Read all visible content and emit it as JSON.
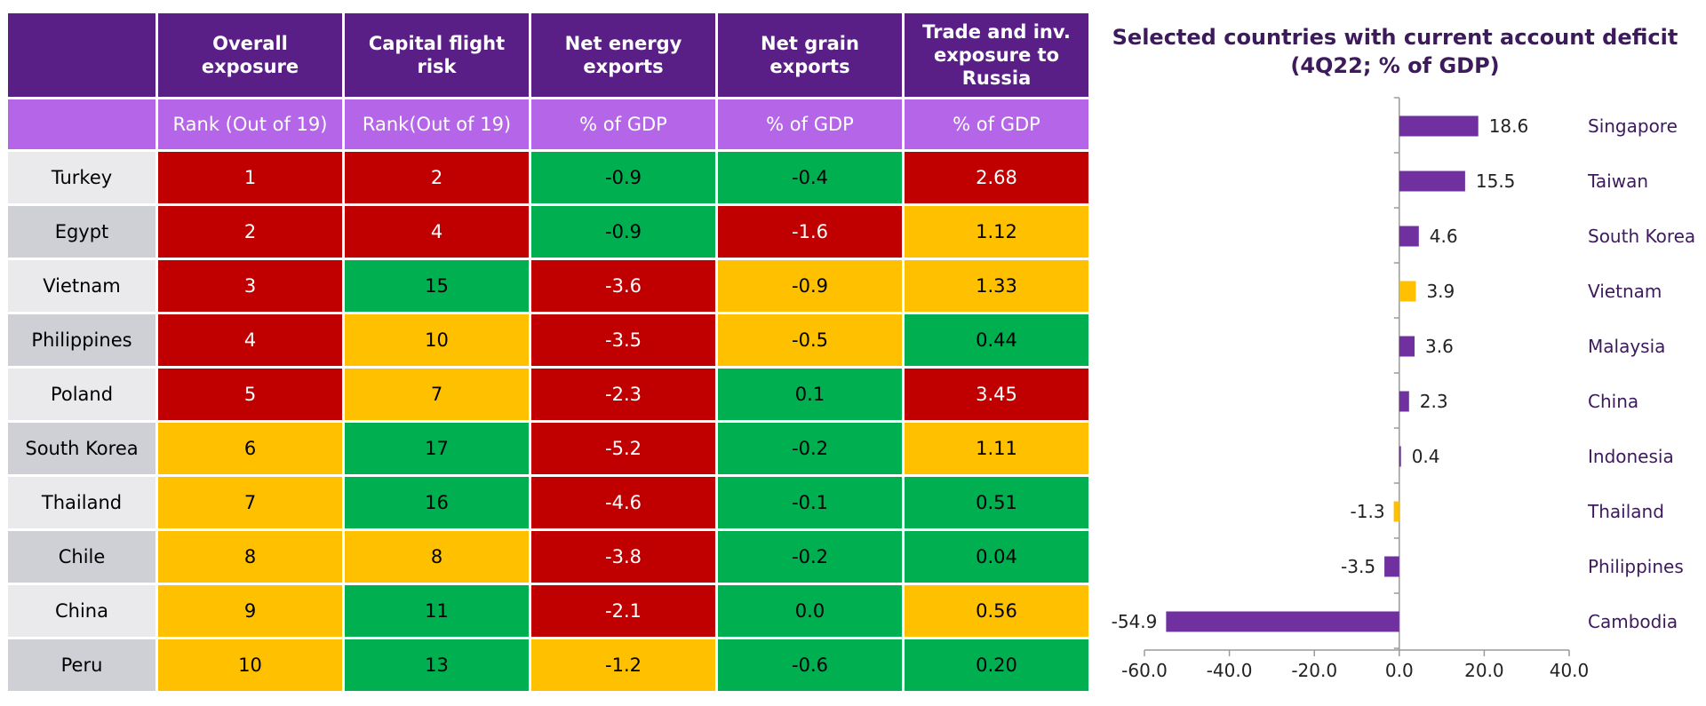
{
  "table": {
    "headers": [
      "Overall exposure",
      "Capital flight risk",
      "Net energy exports",
      "Net grain exports",
      "Trade and inv. exposure to Russia"
    ],
    "header_lines": [
      [
        "Overall",
        "exposure"
      ],
      [
        "Capital flight",
        "risk"
      ],
      [
        "Net energy",
        "exports"
      ],
      [
        "Net grain",
        "exports"
      ],
      [
        "Trade and inv.",
        "exposure to",
        "Russia"
      ]
    ],
    "subheaders": [
      "Rank (Out of 19)",
      "Rank(Out of 19)",
      "% of GDP",
      "% of GDP",
      "% of GDP"
    ],
    "rows": [
      {
        "country": "Turkey",
        "values": [
          "1",
          "2",
          "-0.9",
          "-0.4",
          "2.68"
        ],
        "colors": [
          "red",
          "red",
          "green",
          "green",
          "red"
        ]
      },
      {
        "country": "Egypt",
        "values": [
          "2",
          "4",
          "-0.9",
          "-1.6",
          "1.12"
        ],
        "colors": [
          "red",
          "red",
          "green",
          "red",
          "yellow"
        ]
      },
      {
        "country": "Vietnam",
        "values": [
          "3",
          "15",
          "-3.6",
          "-0.9",
          "1.33"
        ],
        "colors": [
          "red",
          "green",
          "red",
          "yellow",
          "yellow"
        ]
      },
      {
        "country": "Philippines",
        "values": [
          "4",
          "10",
          "-3.5",
          "-0.5",
          "0.44"
        ],
        "colors": [
          "red",
          "yellow",
          "red",
          "yellow",
          "green"
        ]
      },
      {
        "country": "Poland",
        "values": [
          "5",
          "7",
          "-2.3",
          "0.1",
          "3.45"
        ],
        "colors": [
          "red",
          "yellow",
          "red",
          "green",
          "red"
        ]
      },
      {
        "country": "South Korea",
        "values": [
          "6",
          "17",
          "-5.2",
          "-0.2",
          "1.11"
        ],
        "colors": [
          "yellow",
          "green",
          "red",
          "green",
          "yellow"
        ]
      },
      {
        "country": "Thailand",
        "values": [
          "7",
          "16",
          "-4.6",
          "-0.1",
          "0.51"
        ],
        "colors": [
          "yellow",
          "green",
          "red",
          "green",
          "green"
        ]
      },
      {
        "country": "Chile",
        "values": [
          "8",
          "8",
          "-3.8",
          "-0.2",
          "0.04"
        ],
        "colors": [
          "yellow",
          "yellow",
          "red",
          "green",
          "green"
        ]
      },
      {
        "country": "China",
        "values": [
          "9",
          "11",
          "-2.1",
          "0.0",
          "0.56"
        ],
        "colors": [
          "yellow",
          "green",
          "red",
          "green",
          "yellow"
        ]
      },
      {
        "country": "Peru",
        "values": [
          "10",
          "13",
          "-1.2",
          "-0.6",
          "0.20"
        ],
        "colors": [
          "yellow",
          "green",
          "yellow",
          "green",
          "green"
        ]
      }
    ],
    "color_map": {
      "red": "#c00000",
      "green": "#00b050",
      "yellow": "#ffc000"
    }
  },
  "chart_data": {
    "type": "bar",
    "orientation": "horizontal",
    "title": "Selected countries with current account deficit (4Q22; % of GDP)",
    "title_lines": [
      "Selected countries with current account deficit",
      "(4Q22; % of GDP)"
    ],
    "categories": [
      "Singapore",
      "Taiwan",
      "South Korea",
      "Vietnam",
      "Malaysia",
      "China",
      "Indonesia",
      "Thailand",
      "Philippines",
      "Cambodia"
    ],
    "values": [
      18.6,
      15.5,
      4.6,
      3.9,
      3.6,
      2.3,
      0.4,
      -1.3,
      -3.5,
      -54.9
    ],
    "value_labels": [
      "18.6",
      "15.5",
      "4.6",
      "3.9",
      "3.6",
      "2.3",
      "0.4",
      "-1.3",
      "-3.5",
      "-54.9"
    ],
    "bar_colors": [
      "#7030a0",
      "#7030a0",
      "#7030a0",
      "#ffc000",
      "#7030a0",
      "#7030a0",
      "#7030a0",
      "#ffc000",
      "#7030a0",
      "#7030a0"
    ],
    "xlim": [
      -60,
      40
    ],
    "xticks": [
      -60,
      -40,
      -20,
      0,
      20,
      40
    ],
    "xtick_labels": [
      "-60.0",
      "-40.0",
      "-20.0",
      "0.0",
      "20.0",
      "40.0"
    ],
    "grid": false,
    "legend": "none"
  }
}
